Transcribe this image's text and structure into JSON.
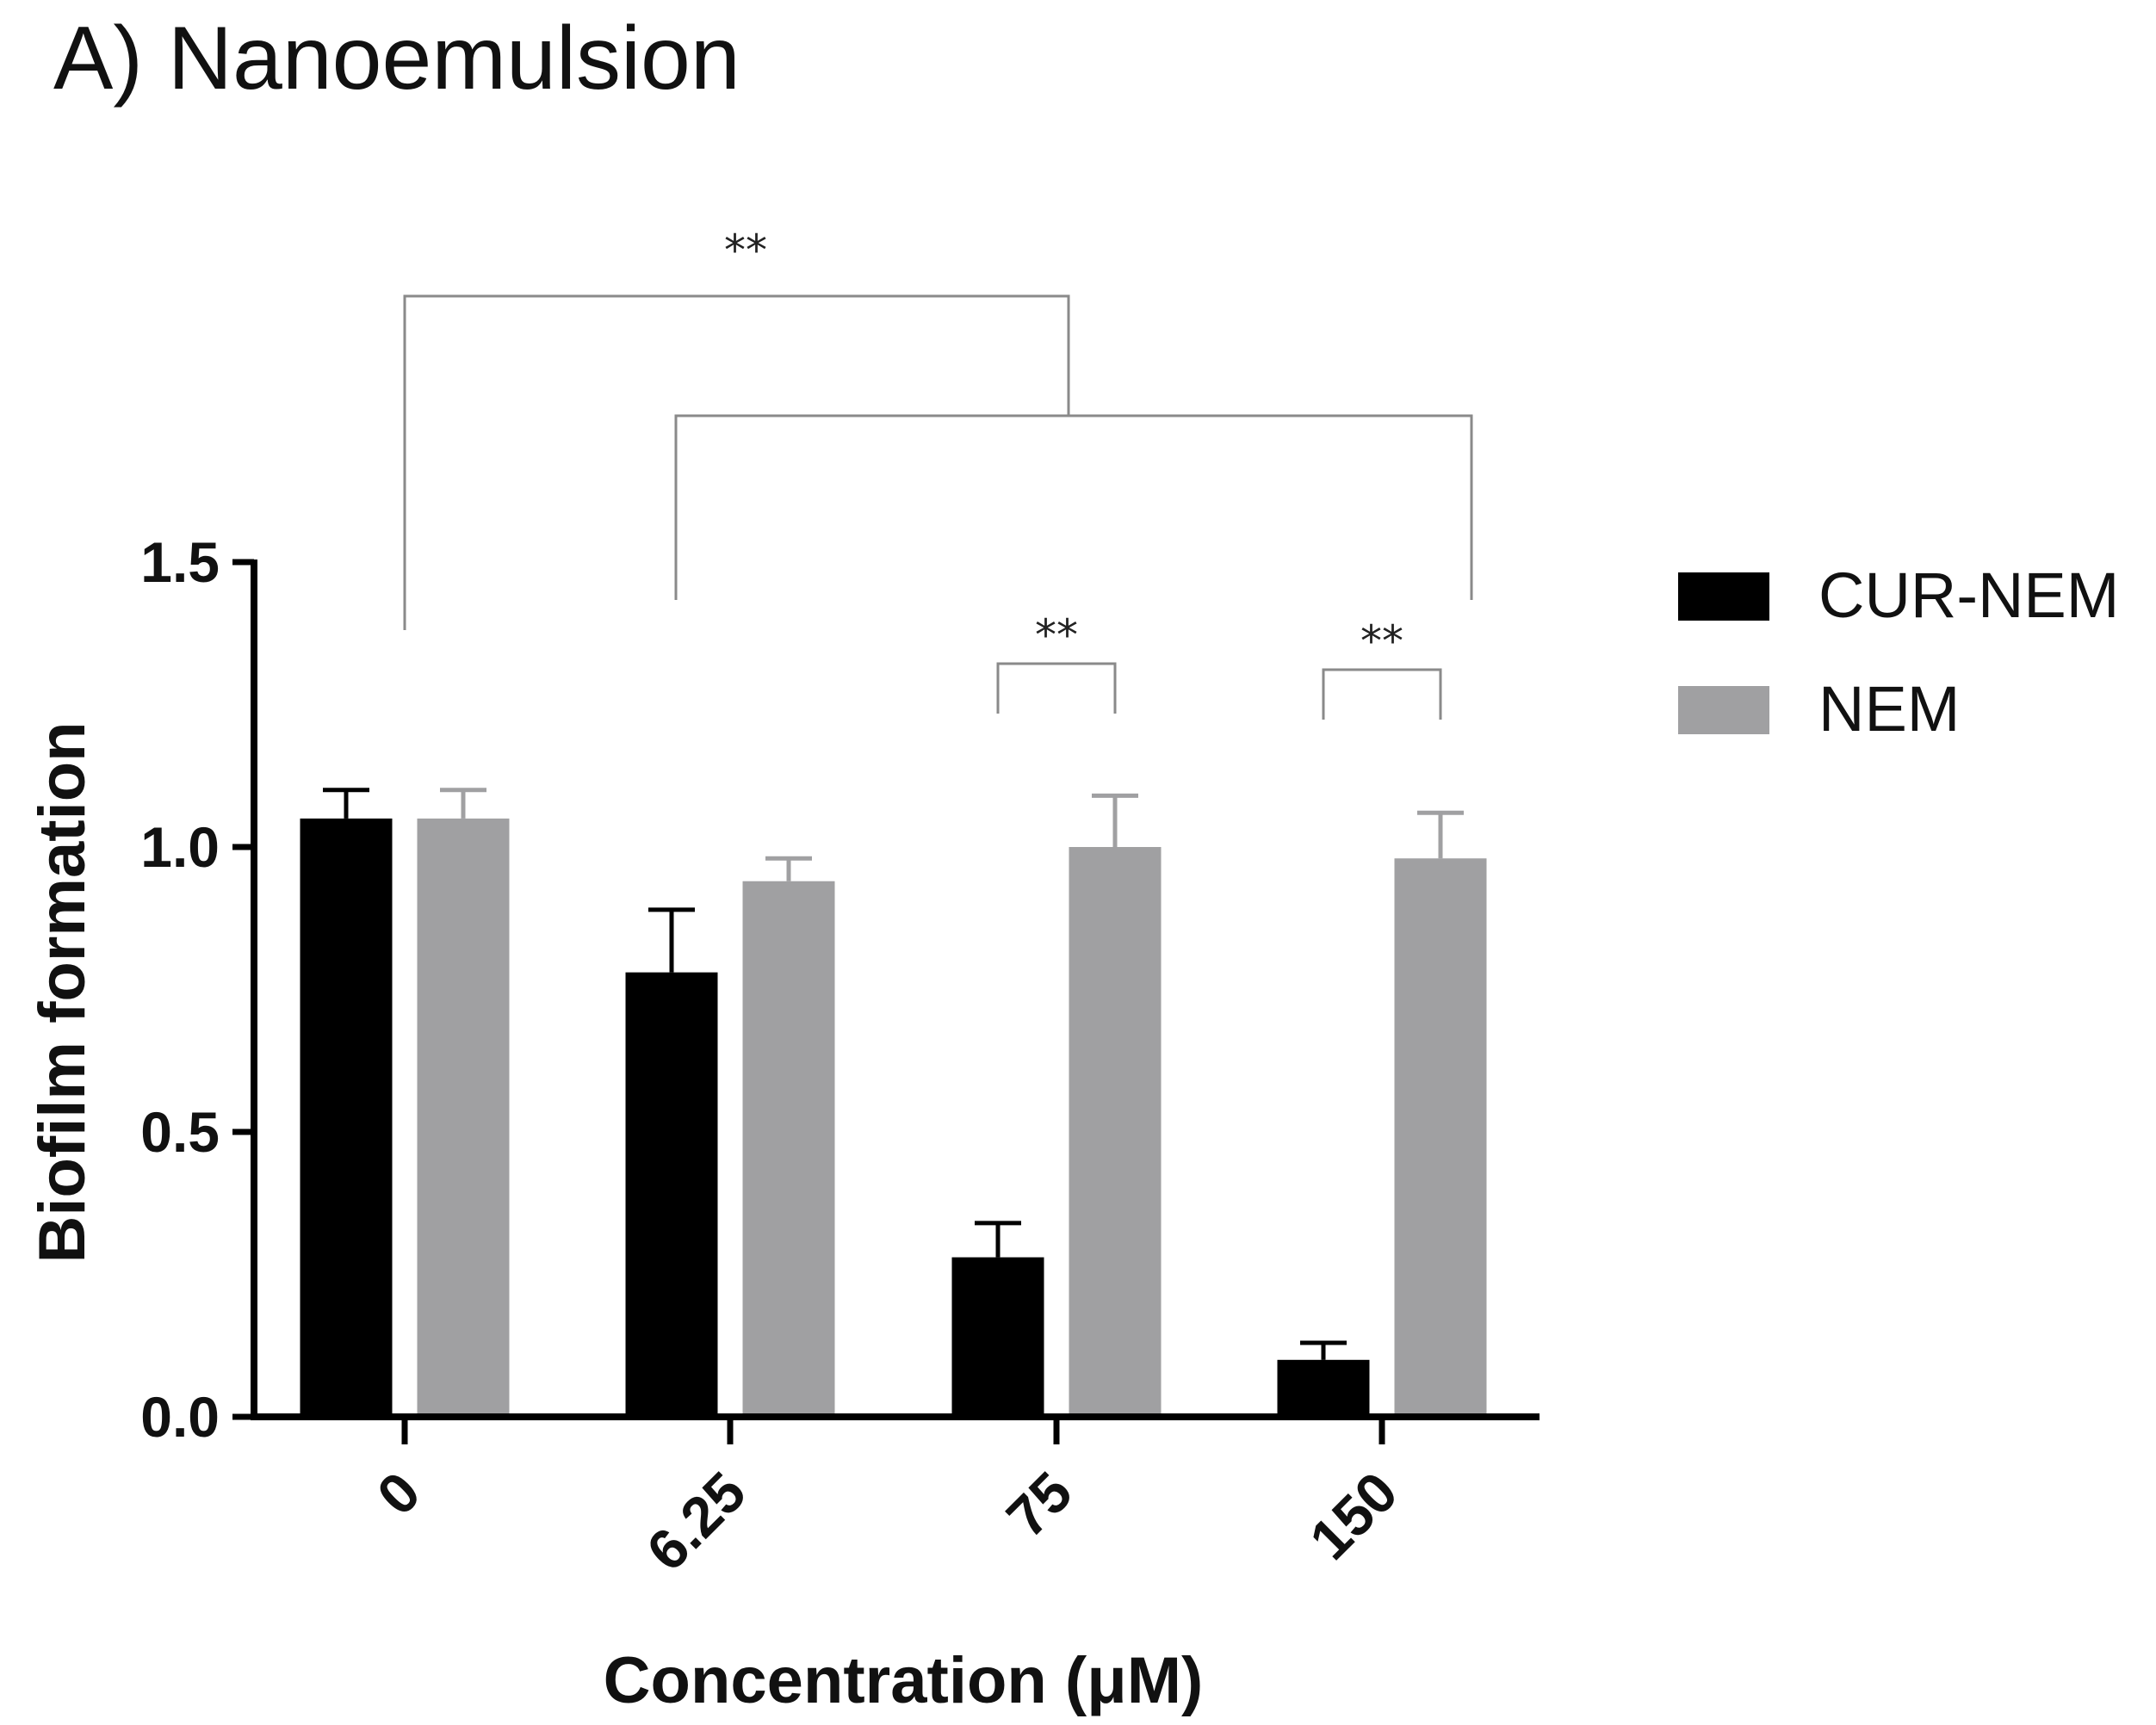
{
  "chart_data": {
    "type": "bar",
    "title": "A) Nanoemulsion",
    "xlabel": "Concentration (μM)",
    "ylabel": "Biofilm formation",
    "categories": [
      "0",
      "6.25",
      "75",
      "150"
    ],
    "ylim": [
      0,
      1.5
    ],
    "yticks": [
      0.0,
      0.5,
      1.0,
      1.5
    ],
    "ytick_labels": [
      "0.0",
      "0.5",
      "1.0",
      "1.5"
    ],
    "legend_position": "right",
    "series": [
      {
        "name": "CUR-NEM",
        "color": "#000000",
        "values": [
          1.05,
          0.78,
          0.28,
          0.1
        ],
        "errors": [
          0.05,
          0.11,
          0.06,
          0.03
        ]
      },
      {
        "name": "NEM",
        "color": "#a0a0a2",
        "values": [
          1.05,
          0.94,
          1.0,
          0.98
        ],
        "errors": [
          0.05,
          0.04,
          0.09,
          0.08
        ]
      }
    ],
    "annotations": [
      {
        "type": "bracket-top",
        "text": "**",
        "label": "0 vs treated concentrations"
      },
      {
        "type": "bracket-pair",
        "category": "75",
        "text": "**"
      },
      {
        "type": "bracket-pair",
        "category": "150",
        "text": "**"
      }
    ],
    "colors": {
      "axis": "#000000",
      "bracket": "#8a8a8a"
    }
  }
}
